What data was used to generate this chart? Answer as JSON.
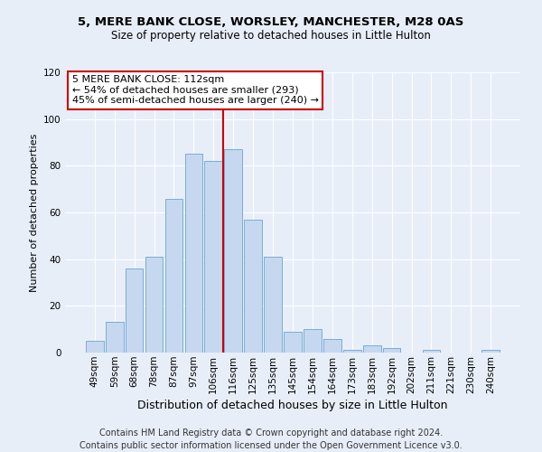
{
  "title_line1": "5, MERE BANK CLOSE, WORSLEY, MANCHESTER, M28 0AS",
  "title_line2": "Size of property relative to detached houses in Little Hulton",
  "xlabel": "Distribution of detached houses by size in Little Hulton",
  "ylabel": "Number of detached properties",
  "categories": [
    "49sqm",
    "59sqm",
    "68sqm",
    "78sqm",
    "87sqm",
    "97sqm",
    "106sqm",
    "116sqm",
    "125sqm",
    "135sqm",
    "145sqm",
    "154sqm",
    "164sqm",
    "173sqm",
    "183sqm",
    "192sqm",
    "202sqm",
    "211sqm",
    "221sqm",
    "230sqm",
    "240sqm"
  ],
  "values": [
    5,
    13,
    36,
    41,
    66,
    85,
    82,
    87,
    57,
    41,
    9,
    10,
    6,
    1,
    3,
    2,
    0,
    1,
    0,
    0,
    1
  ],
  "bar_color": "#c5d8f0",
  "bar_edge_color": "#7aadd4",
  "vline_color": "#cc0000",
  "annotation_text": "5 MERE BANK CLOSE: 112sqm\n← 54% of detached houses are smaller (293)\n45% of semi-detached houses are larger (240) →",
  "annotation_box_color": "#ffffff",
  "annotation_box_edge": "#cc0000",
  "ylim": [
    0,
    120
  ],
  "yticks": [
    0,
    20,
    40,
    60,
    80,
    100,
    120
  ],
  "footer_line1": "Contains HM Land Registry data © Crown copyright and database right 2024.",
  "footer_line2": "Contains public sector information licensed under the Open Government Licence v3.0.",
  "bg_color": "#e8eef8",
  "plot_bg_color": "#e8eef8",
  "grid_color": "#ffffff",
  "title_fontsize": 9.5,
  "subtitle_fontsize": 8.5,
  "xlabel_fontsize": 9,
  "ylabel_fontsize": 8,
  "tick_fontsize": 7.5,
  "footer_fontsize": 7
}
